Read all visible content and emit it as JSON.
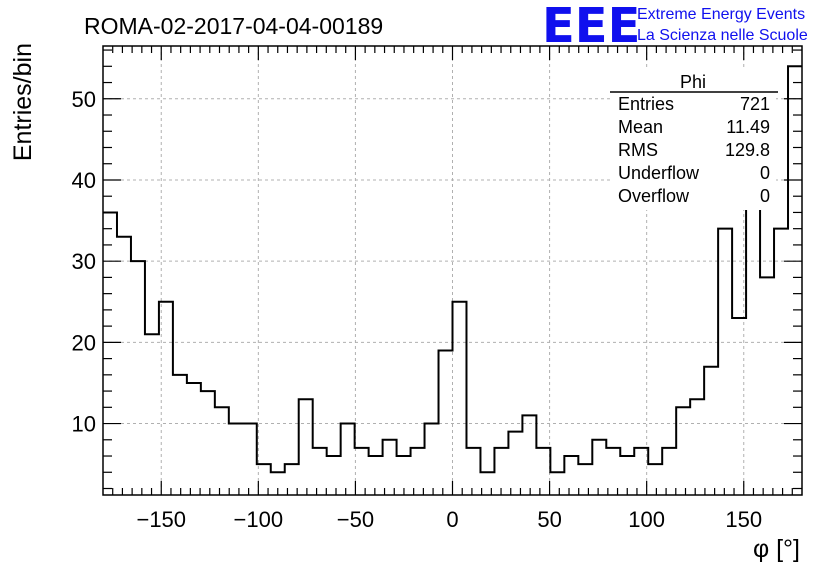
{
  "chart_data": {
    "type": "histogram",
    "title": "ROMA-02-2017-04-04-00189",
    "xlabel": "φ [°]",
    "ylabel": "Entries/bin",
    "xlim": [
      -180,
      180
    ],
    "ylim": [
      1.2,
      56.5
    ],
    "grid": true,
    "bin_width": 7.2,
    "bin_edges_start": -180,
    "x_ticks": [
      -150,
      -100,
      -50,
      0,
      50,
      100,
      150
    ],
    "x_tick_labels": [
      "−150",
      "−100",
      "−50",
      "0",
      "50",
      "100",
      "150"
    ],
    "y_ticks": [
      10,
      20,
      30,
      40,
      50
    ],
    "y_tick_labels": [
      "10",
      "20",
      "30",
      "40",
      "50"
    ],
    "values": [
      36,
      33,
      30,
      21,
      25,
      16,
      15,
      14,
      12,
      10,
      10,
      5,
      4,
      5,
      13,
      7,
      6,
      10,
      7,
      6,
      8,
      6,
      7,
      10,
      19,
      25,
      7,
      4,
      7,
      9,
      11,
      7,
      4,
      6,
      5,
      8,
      7,
      6,
      7,
      5,
      7,
      12,
      13,
      17,
      34,
      23,
      46,
      28,
      34,
      54
    ],
    "line_color": "#000000"
  },
  "stats_box": {
    "title": "Phi",
    "rows": [
      {
        "label": "Entries",
        "value": "721"
      },
      {
        "label": "Mean",
        "value": "11.49"
      },
      {
        "label": "RMS",
        "value": "129.8"
      },
      {
        "label": "Underflow",
        "value": "0"
      },
      {
        "label": "Overflow",
        "value": "0"
      }
    ]
  },
  "logo": {
    "mark": "EEE",
    "line1": "Extreme Energy Events",
    "line2": "La Scienza nelle Scuole",
    "color": "#1010ee"
  }
}
